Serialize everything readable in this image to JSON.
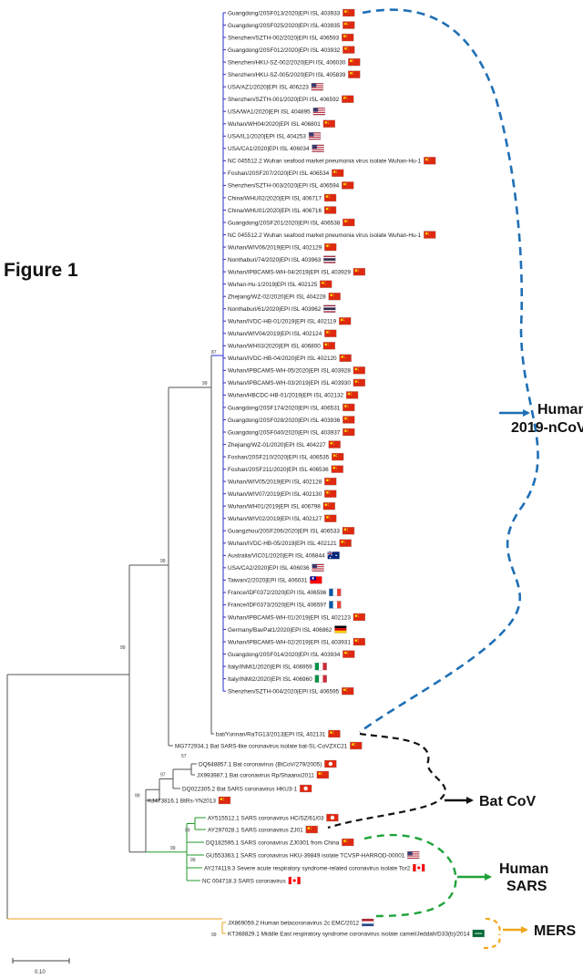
{
  "figure_title": "Figure 1",
  "scale_label": "0.10",
  "groups": {
    "human_2019": {
      "label_line1": "Human",
      "label_line2": "2019-nCoV",
      "color": "#1f6fb5"
    },
    "bat_cov": {
      "label": "Bat CoV",
      "color": "#111111"
    },
    "human_sars": {
      "label_line1": "Human",
      "label_line2": "SARS",
      "color": "#1fa33a"
    },
    "mers": {
      "label": "MERS",
      "color": "#f0a81e"
    }
  },
  "branch_colors": {
    "clade_2019": "#2a2fd0",
    "clade_sars": "#1f9a2a",
    "clade_mers": "#e8a21c",
    "default": "#555555"
  },
  "taxa_2019": [
    {
      "name": "Guangdong/20SF013/2020|EPI ISL 403933",
      "flag": "china"
    },
    {
      "name": "Guangdong/20SF025/2020|EPI ISL 403935",
      "flag": "china"
    },
    {
      "name": "Shenzhen/SZTH-002/2020|EPI ISL 406593",
      "flag": "china"
    },
    {
      "name": "Guangdong/20SF012/2020|EPI ISL 403932",
      "flag": "china"
    },
    {
      "name": "Shenzhen/HKU-SZ-002/2020|EPI ISL 406030",
      "flag": "china"
    },
    {
      "name": "Shenzhen/HKU-SZ-005/2020|EPI ISL 405839",
      "flag": "china"
    },
    {
      "name": "USA/AZ1/2020|EPI ISL 406223",
      "flag": "usa"
    },
    {
      "name": "Shenzhen/SZTH-001/2020|EPI ISL 406592",
      "flag": "china"
    },
    {
      "name": "USA/WA1/2020|EPI ISL 404895",
      "flag": "usa"
    },
    {
      "name": "Wuhan/WH04/2020|EPI ISL 406801",
      "flag": "china"
    },
    {
      "name": "USA/IL1/2020|EPI ISL 404253",
      "flag": "usa"
    },
    {
      "name": "USA/CA1/2020|EPI ISL 406034",
      "flag": "usa"
    },
    {
      "name": "NC 045512.2 Wuhan seafood market pneumonia virus isolate Wuhan-Hu-1",
      "flag": "china"
    },
    {
      "name": "Foshan/20SF207/2020|EPI ISL 406534",
      "flag": "china"
    },
    {
      "name": "Shenzhen/SZTH-003/2020|EPI ISL 406594",
      "flag": "china"
    },
    {
      "name": "China/WHU02/2020|EPI ISL 406717",
      "flag": "china"
    },
    {
      "name": "China/WHU01/2020|EPI ISL 406716",
      "flag": "china"
    },
    {
      "name": "Guangdong/20SF201/2020|EPI ISL 406538",
      "flag": "china"
    },
    {
      "name": "NC 045512.2 Wuhan seafood market pneumonia virus isolate Wuhan-Hu-1",
      "flag": "china"
    },
    {
      "name": "Wuhan/WIV06/2019|EPI ISL 402129",
      "flag": "china"
    },
    {
      "name": "Nonthaburi/74/2020|EPI ISL 403963",
      "flag": "thailand"
    },
    {
      "name": "Wuhan/IPBCAMS-WH-04/2019|EPI ISL 403929",
      "flag": "china"
    },
    {
      "name": "Wuhan-Hu-1/2019|EPI ISL 402125",
      "flag": "china"
    },
    {
      "name": "Zhejiang/WZ-02/2020|EPI ISL 404228",
      "flag": "china"
    },
    {
      "name": "Nonthaburi/61/2020|EPI ISL 403962",
      "flag": "thailand"
    },
    {
      "name": "Wuhan/IVDC-HB-01/2019|EPI ISL 402119",
      "flag": "china"
    },
    {
      "name": "Wuhan/WIV04/2019|EPI ISL 402124",
      "flag": "china"
    },
    {
      "name": "Wuhan/WH03/2020|EPI ISL 406800",
      "flag": "china"
    },
    {
      "name": "Wuhan/IVDC-HB-04/2020|EPI ISL 402120",
      "flag": "china"
    },
    {
      "name": "Wuhan/IPBCAMS-WH-05/2020|EPI ISL 403928",
      "flag": "china"
    },
    {
      "name": "Wuhan/IPBCAMS-WH-03/2019|EPI ISL 403930",
      "flag": "china"
    },
    {
      "name": "Wuhan/HBCDC-HB-01/2019|EPI ISL 402132",
      "flag": "china"
    },
    {
      "name": "Guangdong/20SF174/2020|EPI ISL 406531",
      "flag": "china"
    },
    {
      "name": "Guangdong/20SF028/2020|EPI ISL 403936",
      "flag": "china"
    },
    {
      "name": "Guangdong/20SF040/2020|EPI ISL 403937",
      "flag": "china"
    },
    {
      "name": "Zhejiang/WZ-01/2020|EPI ISL 404227",
      "flag": "china"
    },
    {
      "name": "Foshan/20SF210/2020|EPI ISL 406535",
      "flag": "china"
    },
    {
      "name": "Foshan/20SF211/2020|EPI ISL 406536",
      "flag": "china"
    },
    {
      "name": "Wuhan/WIV05/2019|EPI ISL 402128",
      "flag": "china"
    },
    {
      "name": "Wuhan/WIV07/2019|EPI ISL 402130",
      "flag": "china"
    },
    {
      "name": "Wuhan/WH01/2019|EPI ISL 406798",
      "flag": "china"
    },
    {
      "name": "Wuhan/WIV02/2019|EPI ISL 402127",
      "flag": "china"
    },
    {
      "name": "Guangzhou/20SF206/2020|EPI ISL 406533",
      "flag": "china"
    },
    {
      "name": "Wuhan/IVDC-HB-05/2019|EPI ISL 402121",
      "flag": "china"
    },
    {
      "name": "Australia/VIC01/2020|EPI ISL 406844",
      "flag": "australia"
    },
    {
      "name": "USA/CA2/2020|EPI ISL 406036",
      "flag": "usa"
    },
    {
      "name": "Taiwan/2/2020|EPI ISL 406031",
      "flag": "taiwan"
    },
    {
      "name": "France/IDF0372/2020|EPI ISL 406596",
      "flag": "france"
    },
    {
      "name": "France/IDF0373/2020|EPI ISL 406597",
      "flag": "france"
    },
    {
      "name": "Wuhan/IPBCAMS-WH-01/2019|EPI ISL 402123",
      "flag": "china"
    },
    {
      "name": "Germany/BavPat1/2020|EPI ISL 406862",
      "flag": "germany"
    },
    {
      "name": "Wuhan/IPBCAMS-WH-02/2019|EPI ISL 403931",
      "flag": "china"
    },
    {
      "name": "Guangdong/20SF014/2020|EPI ISL 403934",
      "flag": "china"
    },
    {
      "name": "Italy/INMI1/2020|EPI ISL 406959",
      "flag": "italy"
    },
    {
      "name": "Italy/INMI2/2020|EPI ISL 406960",
      "flag": "italy"
    },
    {
      "name": "Shenzhen/SZTH-004/2020|EPI ISL 406595",
      "flag": "china"
    }
  ],
  "ratg13": {
    "name": "bat/Yunnan/RaTG13/2013|EPI ISL 402131",
    "flag": "china"
  },
  "sl_cov": {
    "name": "MG772934.1 Bat SARS-like coronavirus isolate bat-SL-CoVZXC21",
    "flag": "china"
  },
  "bat_taxa": [
    {
      "name": "DQ648857.1 Bat coronavirus (BtCoV/279/2005)",
      "flag": "hongkong"
    },
    {
      "name": "JX993987.1 Bat coronavirus Rp/Shaanxi2011",
      "flag": "china"
    },
    {
      "name": "DQ022305.2 Bat SARS coronavirus HKU3-1",
      "flag": "hongkong"
    },
    {
      "name": "KJ473816.1 BtRs-YN2013",
      "flag": "china"
    }
  ],
  "sars_taxa": [
    {
      "name": "AY515512.1 SARS coronavirus HC/SZ/61/03",
      "flag": "hongkong"
    },
    {
      "name": "AY297028.1 SARS coronavirus ZJ01",
      "flag": "china"
    },
    {
      "name": "DQ182595.1 SARS coronavirus ZJ0301 from China",
      "flag": "china"
    },
    {
      "name": "GU553363.1 SARS coronavirus HKU-39849 isolate TCVSP-HARROD-00001",
      "flag": "usa"
    },
    {
      "name": "AY274119.3 Severe acute respiratory syndrome-related coronavirus isolate Tor2",
      "flag": "canada"
    },
    {
      "name": "NC 004718.3 SARS coronavirus",
      "flag": "canada"
    }
  ],
  "mers_taxa": [
    {
      "name": "JX869059.2 Human betacoronavirus 2c EMC/2012",
      "flag": "netherlands"
    },
    {
      "name": "KT368829.1 Middle East respiratory syndrome coronavirus isolate camel/Jeddah/D33(b)/2014",
      "flag": "saudi"
    }
  ],
  "bootstrap": {
    "clade_2019": "87",
    "with_ratg13": "99",
    "with_slcov": "99",
    "bat_inner": "57",
    "bat_mid": "97",
    "bat_outer": "99",
    "sars_inner": "99",
    "sars_outer": "99",
    "sars_bottom": "99",
    "mers": "99"
  }
}
